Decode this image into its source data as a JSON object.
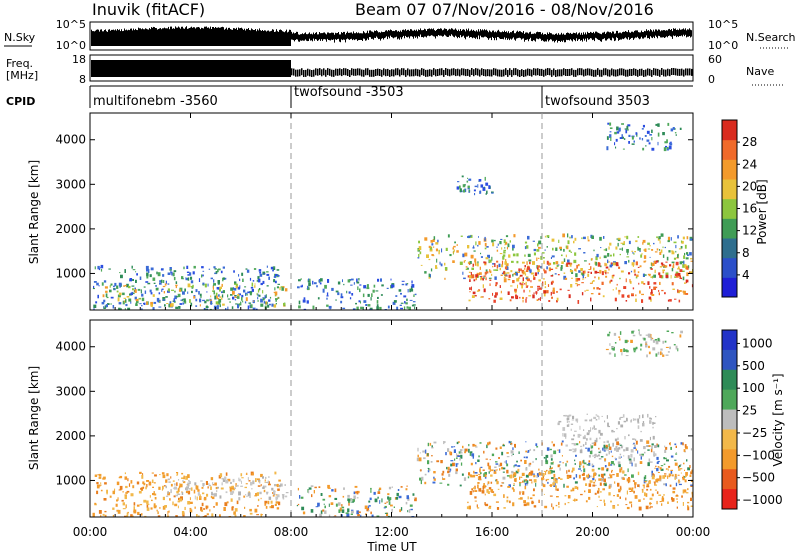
{
  "header": {
    "station": "Inuvik (fitACF)",
    "beam_info": "Beam 07   07/Nov/2016 - 08/Nov/2016"
  },
  "strips": {
    "nsky_label": "N.Sky",
    "nsky_ticks": [
      "10^5",
      "10^0"
    ],
    "nsearch_label": "N.Search",
    "nsearch_ticks": [
      "10^5",
      "10^0"
    ],
    "freq_label_1": "Freq.",
    "freq_label_2": "[MHz]",
    "freq_ticks": [
      "18",
      "8"
    ],
    "nave_label": "Nave",
    "nave_ticks": [
      "60",
      "0"
    ],
    "cpid_label": "CPID",
    "cpid_segments": [
      {
        "label": "multifonebm -3560",
        "start_hour": 0
      },
      {
        "label": "twofsound -3503",
        "start_hour": 8
      },
      {
        "label": "twofsound 3503",
        "start_hour": 18
      }
    ]
  },
  "x_axis": {
    "title": "Time UT",
    "ticks": [
      "00:00",
      "04:00",
      "08:00",
      "12:00",
      "16:00",
      "20:00",
      "00:00"
    ]
  },
  "chart_data": [
    {
      "type": "heatmap",
      "panel": "power",
      "ylabel": "Slant Range [km]",
      "xlim_hours": [
        0,
        24
      ],
      "ylim_km": [
        180,
        4600
      ],
      "yticks": [
        "1000",
        "2000",
        "3000",
        "4000"
      ],
      "colorbar_label": "Power [dB]",
      "colorbar_ticks": [
        "4",
        "8",
        "12",
        "16",
        "20",
        "24",
        "28"
      ],
      "colorbar_range": [
        0,
        32
      ],
      "echo_regions": [
        {
          "t0": 0.1,
          "t1": 7.5,
          "r0": 200,
          "r1": 1200,
          "level": "low"
        },
        {
          "t0": 0.5,
          "t1": 7.8,
          "r0": 300,
          "r1": 800,
          "level": "mid"
        },
        {
          "t0": 8.2,
          "t1": 13.0,
          "r0": 200,
          "r1": 900,
          "level": "low"
        },
        {
          "t0": 13.0,
          "t1": 24.0,
          "r0": 900,
          "r1": 1900,
          "level": "mid"
        },
        {
          "t0": 15.0,
          "t1": 24.0,
          "r0": 400,
          "r1": 1300,
          "level": "high"
        },
        {
          "t0": 14.5,
          "t1": 16.0,
          "r0": 2800,
          "r1": 3200,
          "level": "low"
        },
        {
          "t0": 20.5,
          "t1": 23.5,
          "r0": 3800,
          "r1": 4400,
          "level": "low"
        }
      ]
    },
    {
      "type": "heatmap",
      "panel": "velocity",
      "ylabel": "Slant Range [km]",
      "xlim_hours": [
        0,
        24
      ],
      "ylim_km": [
        180,
        4600
      ],
      "yticks": [
        "1000",
        "2000",
        "3000",
        "4000"
      ],
      "colorbar_label": "Velocity [m s⁻¹]",
      "colorbar_ticks": [
        "1000",
        "500",
        "100",
        "25",
        "−25",
        "−100",
        "−500",
        "−1000"
      ],
      "echo_regions": [
        {
          "t0": 0.1,
          "t1": 7.5,
          "r0": 200,
          "r1": 1200,
          "level": "neg"
        },
        {
          "t0": 3.0,
          "t1": 7.8,
          "r0": 600,
          "r1": 1100,
          "level": "ground"
        },
        {
          "t0": 8.2,
          "t1": 13.0,
          "r0": 200,
          "r1": 900,
          "level": "mixed"
        },
        {
          "t0": 13.0,
          "t1": 24.0,
          "r0": 900,
          "r1": 1900,
          "level": "mixed"
        },
        {
          "t0": 15.0,
          "t1": 24.0,
          "r0": 400,
          "r1": 1300,
          "level": "neg"
        },
        {
          "t0": 18.5,
          "t1": 22.5,
          "r0": 1500,
          "r1": 2500,
          "level": "ground"
        },
        {
          "t0": 20.5,
          "t1": 23.5,
          "r0": 3800,
          "r1": 4400,
          "level": "low"
        }
      ]
    }
  ]
}
